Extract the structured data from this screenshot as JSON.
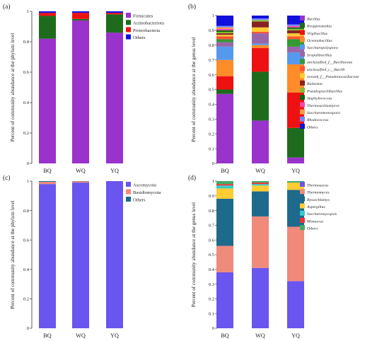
{
  "chart_data": [
    {
      "type": "bar",
      "stacked": true,
      "panel_label": "(a)",
      "categories": [
        "BQ",
        "WQ",
        "YQ"
      ],
      "ylabel": "Percent of community abundance at the phylum level",
      "ylim": [
        0,
        1
      ],
      "yticks": [
        "0",
        "0.2",
        "0.4",
        "0.6",
        "0.8",
        "1"
      ],
      "legend_position": "right",
      "italic_legend": false,
      "series": [
        {
          "name": "Firmicutes",
          "color": "#9933CC",
          "values": [
            0.82,
            0.94,
            0.86
          ]
        },
        {
          "name": "Actinobacteriota",
          "color": "#1E6B1E",
          "values": [
            0.15,
            0.01,
            0.12
          ]
        },
        {
          "name": "Proteobacteria",
          "color": "#EE1111",
          "values": [
            0.02,
            0.04,
            0.01
          ]
        },
        {
          "name": "Others",
          "color": "#1111DD",
          "values": [
            0.01,
            0.01,
            0.01
          ]
        }
      ]
    },
    {
      "type": "bar",
      "stacked": true,
      "panel_label": "(b)",
      "categories": [
        "BQ",
        "WQ",
        "YQ"
      ],
      "ylabel": "Percent of community abundance at the genus level",
      "ylim": [
        0,
        1
      ],
      "yticks": [
        "0",
        "0.1",
        "0.2",
        "0.3",
        "0.4",
        "0.5",
        "0.6",
        "0.7",
        "0.8",
        "0.9",
        "1"
      ],
      "legend_position": "right",
      "italic_legend": true,
      "series": [
        {
          "name": "Bacillus",
          "color": "#9933CC",
          "values": [
            0.47,
            0.29,
            0.04
          ]
        },
        {
          "name": "Kroppenstedtia",
          "color": "#1E6B1E",
          "values": [
            0.03,
            0.33,
            0.2
          ]
        },
        {
          "name": "Virgibacillus",
          "color": "#EE1111",
          "values": [
            0.09,
            0.16,
            0.24
          ]
        },
        {
          "name": "Oceanobacillus",
          "color": "#FF8C29",
          "values": [
            0.11,
            0.02,
            0.19
          ]
        },
        {
          "name": "Saccharopolyspora",
          "color": "#5599EE",
          "values": [
            0.09,
            0.01,
            0.08
          ]
        },
        {
          "name": "Scopulibacillus",
          "color": "#9966AA",
          "values": [
            0.03,
            0.07,
            0.04
          ]
        },
        {
          "name": "unclassified_f__Bacillaceae",
          "color": "#339933",
          "values": [
            0.02,
            0.0,
            0.05
          ]
        },
        {
          "name": "unclassified_c__Bacilli",
          "color": "#FF5533",
          "values": [
            0.02,
            0.01,
            0.02
          ]
        },
        {
          "name": "norank_f__Pseudonocardiaceae",
          "color": "#FFCC33",
          "values": [
            0.01,
            0.03,
            0.02
          ]
        },
        {
          "name": "Ralstonia",
          "color": "#882222",
          "values": [
            0.01,
            0.04,
            0.02
          ]
        },
        {
          "name": "Pseudogracilibacillus",
          "color": "#88BB33",
          "values": [
            0.01,
            0.01,
            0.01
          ]
        },
        {
          "name": "Staphylococcus",
          "color": "#116611",
          "values": [
            0.01,
            0.0,
            0.01
          ]
        },
        {
          "name": "Thermoactinomyces",
          "color": "#FF44AA",
          "values": [
            0.01,
            0.0,
            0.01
          ]
        },
        {
          "name": "Saccharomonospora",
          "color": "#FF9944",
          "values": [
            0.01,
            0.0,
            0.0
          ]
        },
        {
          "name": "Rhodococcus",
          "color": "#7788FF",
          "values": [
            0.01,
            0.01,
            0.01
          ]
        },
        {
          "name": "Others",
          "color": "#1111DD",
          "values": [
            0.07,
            0.02,
            0.06
          ]
        }
      ]
    },
    {
      "type": "bar",
      "stacked": true,
      "panel_label": "(c)",
      "categories": [
        "BQ",
        "WQ",
        "YQ"
      ],
      "ylabel": "Percent of community abundance at the phylum level",
      "ylim": [
        0,
        1
      ],
      "yticks": [
        "0",
        "0.2",
        "0.4",
        "0.6",
        "0.8",
        "1"
      ],
      "legend_position": "right",
      "italic_legend": false,
      "series": [
        {
          "name": "Ascomycota",
          "color": "#6A55EE",
          "values": [
            0.98,
            0.99,
            1.0
          ]
        },
        {
          "name": "Basidiomycota",
          "color": "#F08A7A",
          "values": [
            0.015,
            0.008,
            0.0
          ]
        },
        {
          "name": "Others",
          "color": "#1D6A8C",
          "values": [
            0.005,
            0.002,
            0.0
          ]
        }
      ]
    },
    {
      "type": "bar",
      "stacked": true,
      "panel_label": "(d)",
      "categories": [
        "BQ",
        "WQ",
        "YQ"
      ],
      "ylabel": "Percent of community abundance at the genus level",
      "ylim": [
        0,
        1
      ],
      "yticks": [
        "0",
        "0.1",
        "0.2",
        "0.3",
        "0.4",
        "0.5",
        "0.6",
        "0.7",
        "0.8",
        "0.9",
        "1"
      ],
      "legend_position": "right",
      "italic_legend": true,
      "series": [
        {
          "name": "Thermoascus",
          "color": "#6A55EE",
          "values": [
            0.38,
            0.41,
            0.32
          ]
        },
        {
          "name": "Thermomyces",
          "color": "#F08A7A",
          "values": [
            0.18,
            0.35,
            0.37
          ]
        },
        {
          "name": "Byssochlamys",
          "color": "#1D6A8C",
          "values": [
            0.32,
            0.17,
            0.25
          ]
        },
        {
          "name": "Aspergillus",
          "color": "#FFCC33",
          "values": [
            0.07,
            0.04,
            0.05
          ]
        },
        {
          "name": "Saccharomycopsis",
          "color": "#33CCCC",
          "values": [
            0.02,
            0.01,
            0.0
          ]
        },
        {
          "name": "Monascus",
          "color": "#EE3333",
          "values": [
            0.01,
            0.01,
            0.0
          ]
        },
        {
          "name": "Others",
          "color": "#44AA66",
          "values": [
            0.02,
            0.01,
            0.01
          ]
        }
      ]
    }
  ]
}
